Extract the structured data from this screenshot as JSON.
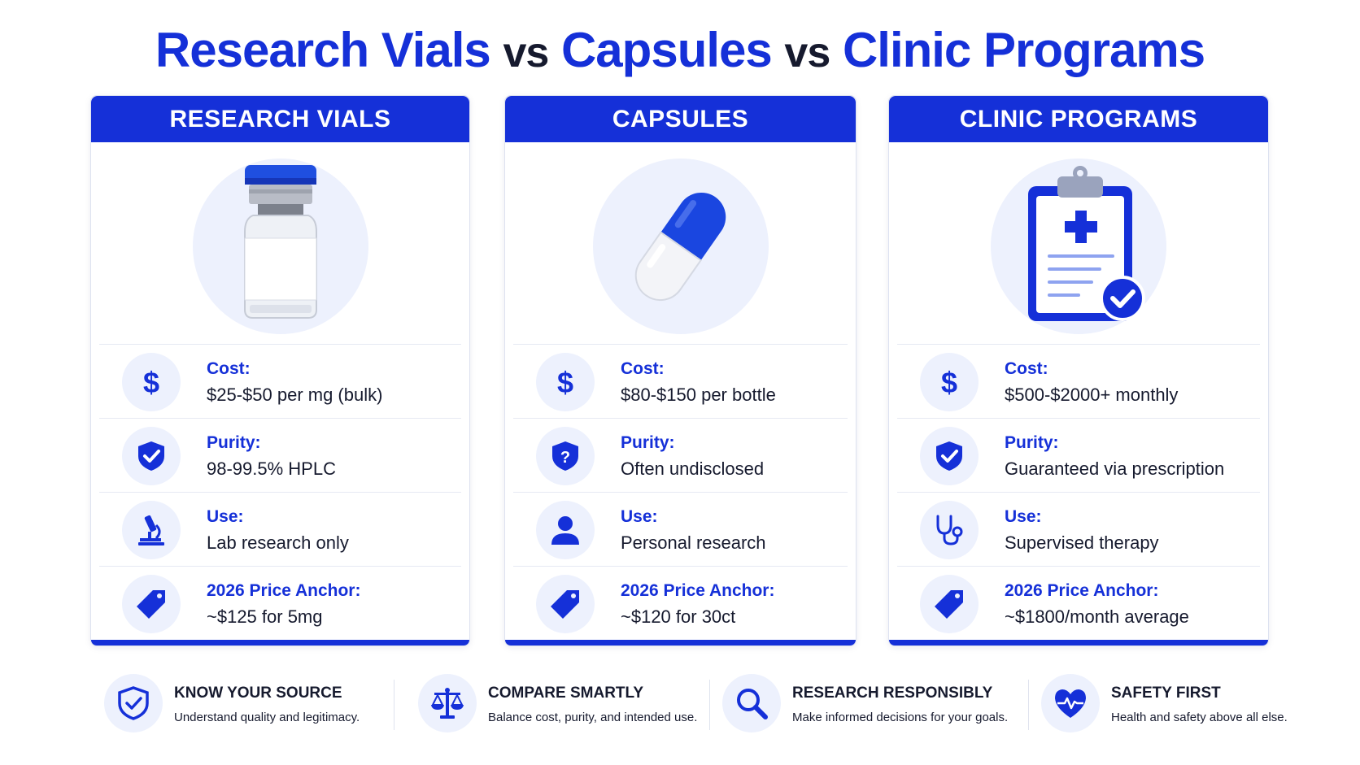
{
  "title": {
    "part1": "Research Vials",
    "vs1": "vs",
    "part2": "Capsules",
    "vs2": "vs",
    "part3": "Clinic Programs"
  },
  "colors": {
    "accent": "#1530d8",
    "tint": "#edf1fd",
    "text": "#161a2e"
  },
  "cards": [
    {
      "header": "RESEARCH VIALS",
      "hero_icon": "vial-icon",
      "rows": [
        {
          "icon": "dollar-icon",
          "label": "Cost:",
          "value": "$25-$50 per mg (bulk)"
        },
        {
          "icon": "shield-check-icon",
          "label": "Purity:",
          "value": "98-99.5% HPLC"
        },
        {
          "icon": "microscope-icon",
          "label": "Use:",
          "value": "Lab research only"
        },
        {
          "icon": "price-tag-icon",
          "label": "2026 Price Anchor:",
          "value": "~$125 for 5mg"
        }
      ]
    },
    {
      "header": "CAPSULES",
      "hero_icon": "capsule-icon",
      "rows": [
        {
          "icon": "dollar-icon",
          "label": "Cost:",
          "value": "$80-$150 per bottle"
        },
        {
          "icon": "shield-question-icon",
          "label": "Purity:",
          "value": "Often undisclosed"
        },
        {
          "icon": "person-icon",
          "label": "Use:",
          "value": "Personal research"
        },
        {
          "icon": "price-tag-icon",
          "label": "2026 Price Anchor:",
          "value": "~$120 for 30ct"
        }
      ]
    },
    {
      "header": "CLINIC PROGRAMS",
      "hero_icon": "clipboard-medical-icon",
      "rows": [
        {
          "icon": "dollar-icon",
          "label": "Cost:",
          "value": "$500-$2000+ monthly"
        },
        {
          "icon": "shield-check-icon",
          "label": "Purity:",
          "value": "Guaranteed via prescription"
        },
        {
          "icon": "stethoscope-icon",
          "label": "Use:",
          "value": "Supervised therapy"
        },
        {
          "icon": "price-tag-icon",
          "label": "2026 Price Anchor:",
          "value": "~$1800/month average"
        }
      ]
    }
  ],
  "tips": [
    {
      "icon": "shield-check-icon",
      "title": "KNOW YOUR SOURCE",
      "text": "Understand quality and legitimacy."
    },
    {
      "icon": "scales-icon",
      "title": "COMPARE SMARTLY",
      "text": "Balance cost, purity, and intended use."
    },
    {
      "icon": "magnifier-icon",
      "title": "RESEARCH RESPONSIBLY",
      "text": "Make informed decisions for your goals."
    },
    {
      "icon": "heart-pulse-icon",
      "title": "SAFETY FIRST",
      "text": "Health and safety above all else."
    }
  ]
}
